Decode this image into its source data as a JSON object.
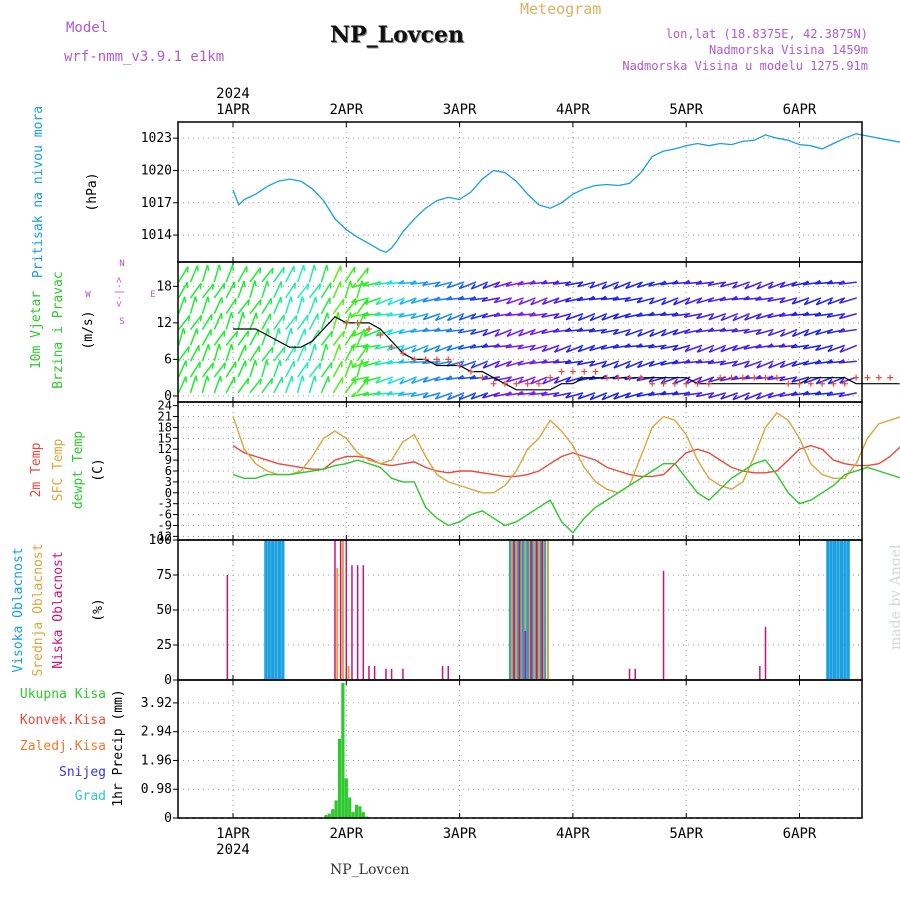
{
  "header": {
    "model_label": "Model",
    "model_name": "wrf-nmm_v3.9.1  e1km",
    "station": "NP_Lovcen",
    "meteogram_label": "Meteogram",
    "coords": "lon,lat (18.8375E, 42.3875N)",
    "altitude": "Nadmorska Visina 1459m",
    "model_altitude": "Nadmorska Visina u modelu 1275.91m",
    "year_top": "2024",
    "year_bottom": "2024",
    "footer_station": "NP_Lovcen",
    "credit": "made by Angel"
  },
  "colors": {
    "pressure": "#1a9fe0",
    "temp2m": "#e84a3c",
    "sfc_temp": "#dba640",
    "dewpoint": "#2ec82e",
    "high_cloud": "#1a9fe0",
    "mid_cloud": "#dba640",
    "low_cloud": "#c8147a",
    "precip_total": "#2ec82e",
    "wind_speed": "#000000",
    "gust": "#e84a3c"
  },
  "chart_data": [
    {
      "type": "line",
      "panel": "pressure",
      "ylabel": [
        "Pritisak na nivou mora",
        "(hPa)"
      ],
      "yticks": [
        1014,
        1017,
        1020,
        1023
      ],
      "ylim": [
        1011.5,
        1024.5
      ],
      "xlim": [
        0,
        6.1
      ],
      "xticks": [
        "1APR",
        "2APR",
        "3APR",
        "4APR",
        "5APR",
        "6APR"
      ],
      "grid": true,
      "series": [
        {
          "x": [
            0,
            0.05,
            0.1,
            0.2,
            0.3,
            0.4,
            0.5,
            0.6,
            0.7,
            0.8,
            0.9,
            1.0,
            1.1,
            1.2,
            1.3,
            1.35,
            1.4,
            1.45,
            1.5,
            1.6,
            1.7,
            1.8,
            1.9,
            2.0,
            2.1,
            2.2,
            2.3,
            2.4,
            2.5,
            2.6,
            2.7,
            2.8,
            2.9,
            3.0,
            3.1,
            3.2,
            3.3,
            3.4,
            3.5,
            3.6,
            3.7,
            3.8,
            3.9,
            4.0,
            4.1,
            4.2,
            4.3,
            4.4,
            4.5,
            4.6,
            4.7,
            4.8,
            4.9,
            5.0,
            5.1,
            5.2,
            5.3,
            5.4,
            5.5,
            5.6,
            5.7,
            5.8,
            5.9,
            6.0,
            6.1
          ],
          "values": [
            1018.2,
            1016.8,
            1017.3,
            1017.8,
            1018.5,
            1019.0,
            1019.2,
            1019.0,
            1018.3,
            1017.2,
            1015.5,
            1014.5,
            1013.8,
            1013.2,
            1012.6,
            1012.4,
            1012.8,
            1013.5,
            1014.3,
            1015.5,
            1016.5,
            1017.2,
            1017.5,
            1017.3,
            1018.0,
            1019.2,
            1020.0,
            1019.8,
            1019.0,
            1017.8,
            1016.8,
            1016.5,
            1017.0,
            1017.8,
            1018.3,
            1018.6,
            1018.7,
            1018.6,
            1018.8,
            1019.8,
            1021.3,
            1021.8,
            1022.0,
            1022.3,
            1022.5,
            1022.3,
            1022.5,
            1022.4,
            1022.7,
            1022.8,
            1023.3,
            1023.0,
            1022.8,
            1022.4,
            1022.3,
            1022.0,
            1022.5,
            1023.0,
            1023.4,
            1023.2,
            1023.0,
            1022.8,
            1022.6,
            1022.3,
            1022.1
          ]
        }
      ]
    },
    {
      "type": "line",
      "panel": "wind",
      "ylabel": [
        "10m Vjetar",
        "Brzina i Pravac",
        "(m/s)"
      ],
      "compass": {
        "n": "N",
        "s": "S",
        "e": "E",
        "w": "W",
        "arrow": "<-|->"
      },
      "yticks": [
        0,
        6,
        12,
        18
      ],
      "ylim": [
        -1,
        22
      ],
      "grid": true,
      "series": [
        {
          "name": "speed",
          "x": [
            0,
            0.1,
            0.2,
            0.3,
            0.4,
            0.5,
            0.6,
            0.7,
            0.8,
            0.9,
            1.0,
            1.1,
            1.2,
            1.3,
            1.4,
            1.5,
            1.6,
            1.7,
            1.8,
            1.9,
            2.0,
            2.1,
            2.2,
            2.3,
            2.4,
            2.5,
            2.6,
            2.7,
            2.8,
            2.9,
            3.0,
            3.1,
            3.2,
            3.3,
            3.4,
            3.5,
            3.6,
            3.7,
            3.8,
            3.9,
            4.0,
            4.1,
            4.2,
            4.3,
            4.4,
            4.5,
            4.6,
            4.7,
            4.8,
            4.9,
            5.0,
            5.1,
            5.2,
            5.3,
            5.4,
            5.5,
            5.6,
            5.7,
            5.8,
            5.9,
            6.0,
            6.1
          ],
          "values": [
            11,
            11,
            11,
            10,
            9,
            8,
            8,
            9,
            11,
            13,
            12,
            12,
            12,
            11,
            9,
            7,
            6,
            6,
            5,
            5,
            5,
            4,
            4,
            3,
            2,
            1,
            1,
            1,
            1,
            2,
            2,
            3,
            3,
            3,
            3,
            3,
            3,
            3,
            3,
            3,
            3,
            2,
            2,
            2,
            2,
            2,
            2,
            2,
            2,
            2,
            2,
            3,
            3,
            3,
            3,
            2,
            2,
            2,
            2,
            2,
            2,
            2
          ]
        },
        {
          "name": "gust",
          "x": [
            1.0,
            1.1,
            1.2,
            1.3,
            1.4,
            1.5,
            1.6,
            1.7,
            1.8,
            1.9,
            2.0,
            2.1,
            2.2,
            2.3,
            2.4,
            2.5,
            2.6,
            2.7,
            2.8,
            2.9,
            3.0,
            3.1,
            3.2,
            3.3,
            3.4,
            3.5,
            3.6,
            3.7,
            3.8,
            3.9,
            4.0,
            4.1,
            4.2,
            4.3,
            4.4,
            4.5,
            4.6,
            4.7,
            4.8,
            4.9,
            5.0,
            5.1,
            5.2,
            5.3,
            5.4,
            5.5,
            5.6,
            5.7,
            5.8,
            5.9,
            6.0
          ],
          "values": [
            12,
            12,
            11,
            10,
            8,
            7,
            6,
            6,
            6,
            6,
            5,
            4,
            3,
            2,
            2,
            2,
            2,
            2,
            3,
            4,
            4,
            4,
            4,
            3,
            3,
            3,
            3,
            2,
            2,
            2,
            2,
            2,
            2,
            3,
            3,
            3,
            3,
            3,
            3,
            2,
            2,
            2,
            2,
            2,
            2,
            3,
            3,
            3,
            3,
            2,
            2
          ]
        }
      ]
    },
    {
      "type": "line",
      "panel": "temperature",
      "ylabel": [
        "2m Temp",
        "SFC Temp",
        "dewpt Temp",
        "(C)"
      ],
      "yticks": [
        -12,
        -9,
        -6,
        -3,
        0,
        3,
        6,
        9,
        12,
        15,
        18,
        21,
        24
      ],
      "ylim": [
        -13,
        25
      ],
      "grid": true,
      "series": [
        {
          "name": "2m Temp",
          "x": [
            0,
            0.1,
            0.2,
            0.3,
            0.4,
            0.5,
            0.6,
            0.7,
            0.8,
            0.9,
            1.0,
            1.1,
            1.2,
            1.3,
            1.4,
            1.5,
            1.6,
            1.7,
            1.8,
            1.9,
            2.0,
            2.1,
            2.2,
            2.3,
            2.4,
            2.5,
            2.6,
            2.7,
            2.8,
            2.9,
            3.0,
            3.1,
            3.2,
            3.3,
            3.4,
            3.5,
            3.6,
            3.7,
            3.8,
            3.9,
            4.0,
            4.1,
            4.2,
            4.3,
            4.4,
            4.5,
            4.6,
            4.7,
            4.8,
            4.9,
            5.0,
            5.1,
            5.2,
            5.3,
            5.4,
            5.5,
            5.6,
            5.7,
            5.8,
            5.9,
            6.0,
            6.1
          ],
          "values": [
            13,
            11,
            10,
            9,
            8,
            7.5,
            7,
            6.5,
            6.5,
            9,
            10,
            10,
            9.5,
            8,
            7.5,
            8,
            8.5,
            7,
            6,
            5.5,
            6,
            6,
            5.5,
            5,
            4.5,
            4.5,
            5,
            6,
            8,
            10,
            11,
            10,
            9,
            7,
            6,
            5,
            4.5,
            4.5,
            5,
            8,
            11,
            12,
            11,
            9,
            7,
            6,
            5.5,
            5.5,
            6,
            9,
            12,
            13,
            12,
            9,
            8,
            7.5,
            7.5,
            8,
            10,
            13,
            15,
            15
          ]
        },
        {
          "name": "SFC Temp",
          "x": [
            0,
            0.1,
            0.2,
            0.3,
            0.4,
            0.5,
            0.6,
            0.7,
            0.8,
            0.9,
            1.0,
            1.1,
            1.2,
            1.3,
            1.4,
            1.5,
            1.6,
            1.7,
            1.8,
            1.9,
            2.0,
            2.1,
            2.2,
            2.3,
            2.4,
            2.5,
            2.6,
            2.7,
            2.8,
            2.9,
            3.0,
            3.1,
            3.2,
            3.3,
            3.4,
            3.5,
            3.6,
            3.7,
            3.8,
            3.9,
            4.0,
            4.1,
            4.2,
            4.3,
            4.4,
            4.5,
            4.6,
            4.7,
            4.8,
            4.9,
            5.0,
            5.1,
            5.2,
            5.3,
            5.4,
            5.5,
            5.6,
            5.7,
            5.8,
            5.9,
            6.0,
            6.1
          ],
          "values": [
            21,
            12,
            8,
            6,
            5,
            5,
            6,
            10,
            15,
            17,
            15,
            11,
            9,
            8,
            9,
            14,
            16,
            10,
            5,
            3,
            2,
            1,
            0,
            0,
            2,
            6,
            12,
            15,
            20,
            17,
            13,
            7,
            3,
            1,
            0,
            2,
            10,
            18,
            21,
            20,
            16,
            9,
            4,
            2,
            1,
            3,
            10,
            18,
            22,
            20,
            15,
            8,
            5,
            4,
            4,
            8,
            15,
            19,
            20,
            21,
            22,
            22
          ]
        },
        {
          "name": "dewpt Temp",
          "x": [
            0,
            0.1,
            0.2,
            0.3,
            0.4,
            0.5,
            0.6,
            0.7,
            0.8,
            0.9,
            1.0,
            1.1,
            1.2,
            1.3,
            1.4,
            1.5,
            1.6,
            1.7,
            1.8,
            1.9,
            2.0,
            2.1,
            2.2,
            2.3,
            2.4,
            2.5,
            2.6,
            2.7,
            2.8,
            2.9,
            3.0,
            3.1,
            3.2,
            3.3,
            3.4,
            3.5,
            3.6,
            3.7,
            3.8,
            3.9,
            4.0,
            4.1,
            4.2,
            4.3,
            4.4,
            4.5,
            4.6,
            4.7,
            4.8,
            4.9,
            5.0,
            5.1,
            5.2,
            5.3,
            5.4,
            5.5,
            5.6,
            5.7,
            5.8,
            5.9,
            6.0,
            6.1
          ],
          "values": [
            5,
            4,
            4,
            5,
            5,
            5,
            5.5,
            6,
            6.5,
            7.5,
            8,
            9,
            8,
            7,
            4,
            3,
            3,
            -4,
            -7,
            -9,
            -8,
            -6,
            -5,
            -7,
            -9,
            -8,
            -6,
            -4,
            -2,
            -8,
            -11,
            -7,
            -4,
            -2,
            0,
            2,
            4,
            6,
            8,
            8,
            4,
            0,
            -2,
            1,
            4,
            6,
            8,
            9,
            5,
            0,
            -3,
            -2,
            0,
            2,
            5,
            6,
            7,
            6,
            5,
            4,
            2,
            1
          ]
        }
      ]
    },
    {
      "type": "bar",
      "panel": "clouds",
      "ylabel": [
        "Visoka Oblacnost",
        "Srednja Oblacnost",
        "Niska Oblacnost",
        "(%)"
      ],
      "yticks": [
        0,
        25,
        50,
        75,
        100
      ],
      "ylim": [
        0,
        100
      ],
      "grid": true,
      "series": [
        {
          "name": "Visoka Oblacnost",
          "x": [
            0.29,
            0.32,
            0.35,
            0.38,
            0.41,
            0.44,
            2.45,
            2.47,
            2.49,
            2.51,
            2.53,
            2.55,
            2.57,
            2.59,
            2.61,
            2.63,
            2.65,
            2.67,
            2.69,
            2.71,
            2.73,
            2.75,
            5.25,
            5.28,
            5.31,
            5.34,
            5.37,
            5.4,
            5.43
          ],
          "values": [
            100,
            100,
            100,
            100,
            100,
            100,
            100,
            100,
            100,
            100,
            100,
            100,
            100,
            100,
            100,
            100,
            100,
            100,
            100,
            100,
            100,
            100,
            100,
            100,
            100,
            100,
            100,
            100,
            100
          ]
        },
        {
          "name": "Srednja Oblacnost",
          "x": [
            0.92,
            0.97,
            1.02,
            2.46,
            2.5,
            2.54,
            2.58,
            2.62,
            2.66,
            2.7,
            2.74,
            2.78
          ],
          "values": [
            80,
            100,
            10,
            100,
            100,
            100,
            100,
            100,
            100,
            100,
            100,
            100
          ]
        },
        {
          "name": "Niska Oblacnost",
          "x": [
            -0.05,
            0.9,
            0.95,
            1.0,
            1.05,
            1.1,
            1.15,
            1.2,
            1.25,
            1.35,
            1.4,
            1.5,
            1.85,
            1.9,
            2.48,
            2.53,
            2.58,
            2.63,
            2.68,
            2.73,
            3.5,
            3.55,
            3.8,
            4.65,
            4.7
          ],
          "values": [
            75,
            100,
            100,
            100,
            82,
            82,
            82,
            10,
            10,
            8,
            8,
            8,
            10,
            10,
            100,
            100,
            35,
            100,
            100,
            100,
            8,
            8,
            78,
            10,
            38
          ]
        }
      ]
    },
    {
      "type": "bar",
      "panel": "precipitation",
      "ylabel": [
        "1hr Precip (mm)"
      ],
      "legend": [
        "Ukupna Kisa",
        "Konvek.Kisa",
        "Zaledj.Kisa",
        "Snijeg",
        "Grad"
      ],
      "legend_colors": [
        "#2ec82e",
        "#e84a3c",
        "#f07830",
        "#3838e0",
        "#30c8c8"
      ],
      "yticks": [
        0,
        0.98,
        1.96,
        2.94,
        3.92
      ],
      "ylim": [
        0,
        4.7
      ],
      "grid": true,
      "series": [
        {
          "name": "Ukupna Kisa",
          "x": [
            0.82,
            0.85,
            0.88,
            0.91,
            0.94,
            0.97,
            1.0,
            1.03,
            1.06,
            1.09,
            1.12,
            1.15,
            1.18,
            2.5
          ],
          "values": [
            0.1,
            0.15,
            0.3,
            0.6,
            2.7,
            4.6,
            1.35,
            0.7,
            0.2,
            0.45,
            0.4,
            0.2,
            0.05,
            0.03
          ]
        }
      ]
    }
  ]
}
